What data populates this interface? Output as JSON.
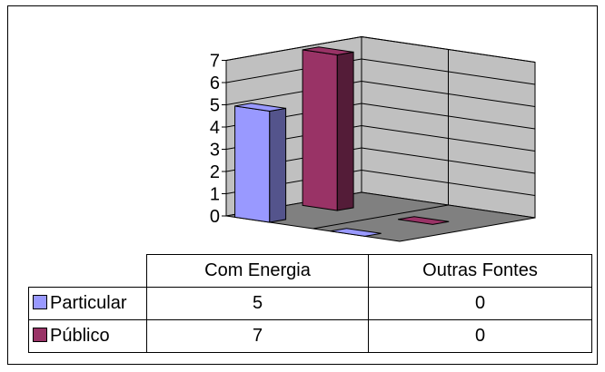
{
  "chart_data": {
    "type": "bar",
    "subtype": "3d-column-with-data-table",
    "categories": [
      "Com Energia",
      "Outras Fontes"
    ],
    "series": [
      {
        "name": "Particular",
        "values": [
          5,
          0
        ],
        "color": "#9999ff"
      },
      {
        "name": "Público",
        "values": [
          7,
          0
        ],
        "color": "#993366"
      }
    ],
    "y_ticks": [
      "0",
      "1",
      "2",
      "3",
      "4",
      "5",
      "6",
      "7"
    ],
    "ylim": [
      0,
      7
    ],
    "grid": true,
    "legend": "data-table-left"
  }
}
